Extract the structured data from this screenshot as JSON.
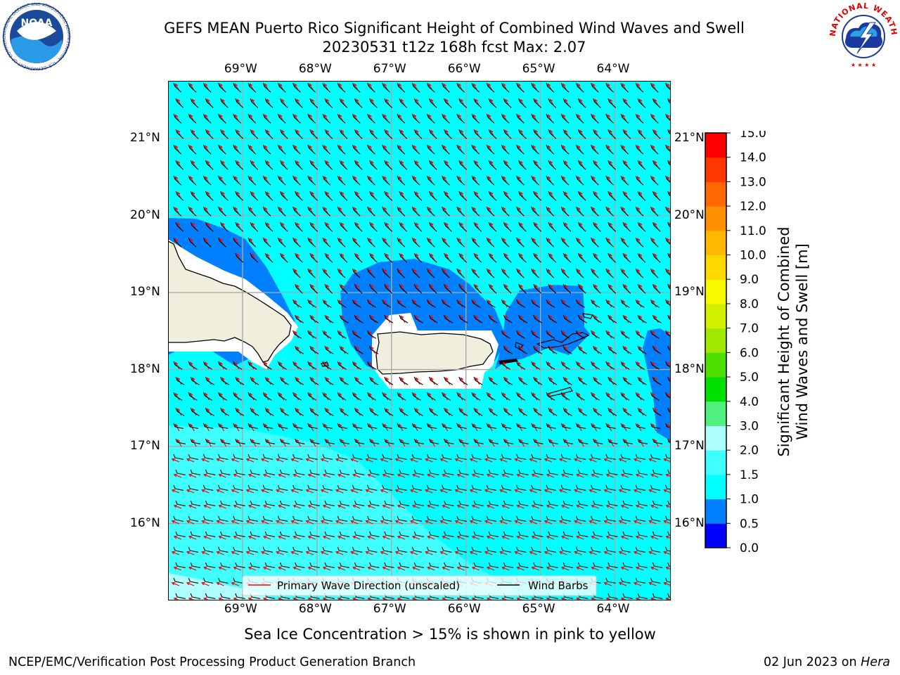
{
  "header": {
    "title_line1": "GEFS MEAN Puerto Rico Significant Height of Combined Wind Waves and Swell",
    "title_line2": "20230531 t12z 168h fcst   Max: 2.07",
    "noaa_logo_text": "NOAA",
    "noaa_ring_text": "NATIONAL OCEANIC AND ATMOSPHERIC ADMINISTRATION · U.S. DEPARTMENT OF COMMERCE",
    "nws_ring_text": "NATIONAL WEATHER SERVICE"
  },
  "map": {
    "lon_range": [
      -70.0,
      -63.25
    ],
    "lat_range": [
      15.0,
      21.75
    ],
    "lon_ticks": [
      "69°W",
      "68°W",
      "67°W",
      "66°W",
      "65°W",
      "64°W"
    ],
    "lon_tick_values": [
      -69,
      -68,
      -67,
      -66,
      -65,
      -64
    ],
    "lat_ticks": [
      "21°N",
      "20°N",
      "19°N",
      "18°N",
      "17°N",
      "16°N"
    ],
    "lat_tick_values": [
      21,
      20,
      19,
      18,
      17,
      16
    ],
    "grid": true,
    "legend": {
      "placement": "bottom-center",
      "entries": [
        {
          "label": "Primary Wave Direction (unscaled)",
          "color": "#ff0000"
        },
        {
          "label": "Wind Barbs",
          "color": "#000000"
        }
      ]
    },
    "land_color": "#f0eedc",
    "background_color": "#00ffff"
  },
  "colorbar": {
    "label_line1": "Significant Height of Combined",
    "label_line2": "Wind Waves and Swell [m]",
    "levels": [
      "0.0",
      "0.5",
      "1.0",
      "1.5",
      "2.0",
      "3.0",
      "4.0",
      "5.0",
      "6.0",
      "7.0",
      "8.0",
      "9.0",
      "10.0",
      "11.0",
      "12.0",
      "13.0",
      "14.0",
      "15.0"
    ],
    "colors": [
      "#0000ff",
      "#0080ff",
      "#00ffff",
      "#40ffff",
      "#b0ffff",
      "#50f080",
      "#00e000",
      "#50e000",
      "#a0e800",
      "#d0f000",
      "#f8f800",
      "#ffd800",
      "#ffb800",
      "#ff9000",
      "#ff6800",
      "#ff3800",
      "#ff0000"
    ]
  },
  "footer": {
    "sea_ice_note": "Sea Ice Concentration > 15% is shown in pink to yellow",
    "left": "NCEP/EMC/Verification Post Processing Product Generation Branch",
    "right_date": "02 Jun 2023 on ",
    "right_host": "Hera"
  }
}
